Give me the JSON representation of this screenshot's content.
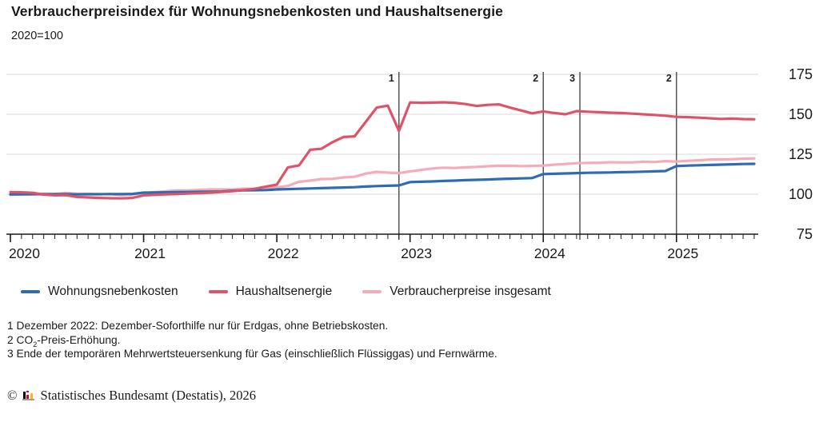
{
  "header": {
    "title": "Verbraucherpreisindex für Wohnungsnebenkosten und Haushaltsenergie",
    "subtitle": "2020=100"
  },
  "chart_data": {
    "type": "line",
    "title": "Verbraucherpreisindex für Wohnungsnebenkosten und Haushaltsenergie",
    "index_base": "2020=100",
    "x_unit": "month",
    "x_start": "2020-01",
    "x_end": "2025-08",
    "x_tick_labels": [
      "2020",
      "2021",
      "2022",
      "2023",
      "2024",
      "2025"
    ],
    "ylim": [
      75,
      175
    ],
    "yticks": [
      75,
      100,
      125,
      150,
      175
    ],
    "grid": true,
    "legend_position": "bottom",
    "series": [
      {
        "name": "Wohnungsnebenkosten",
        "color": "#2d6cb5",
        "values": [
          99.9,
          99.9,
          100.0,
          100.0,
          100.0,
          100.0,
          99.9,
          100.0,
          100.0,
          100.1,
          100.1,
          100.2,
          101.0,
          101.1,
          101.2,
          101.3,
          101.4,
          101.5,
          101.6,
          101.7,
          102.2,
          102.4,
          102.5,
          102.6,
          103.0,
          103.2,
          103.4,
          103.6,
          103.8,
          104.0,
          104.2,
          104.4,
          104.8,
          105.1,
          105.3,
          105.5,
          107.6,
          107.8,
          108.0,
          108.3,
          108.5,
          108.8,
          109.0,
          109.2,
          109.5,
          109.7,
          109.9,
          110.1,
          112.6,
          112.8,
          113.0,
          113.2,
          113.4,
          113.5,
          113.6,
          113.8,
          113.9,
          114.1,
          114.3,
          114.5,
          117.6,
          117.9,
          118.1,
          118.3,
          118.5,
          118.7,
          118.9,
          119.0
        ]
      },
      {
        "name": "Haushaltsenergie",
        "color": "#dd5468",
        "values": [
          101.3,
          101.2,
          100.9,
          99.8,
          99.3,
          99.4,
          98.3,
          98.0,
          97.7,
          97.5,
          97.4,
          97.7,
          99.3,
          99.6,
          99.9,
          100.1,
          100.4,
          100.7,
          101.0,
          101.4,
          101.9,
          102.6,
          103.4,
          104.7,
          106.0,
          116.8,
          118.0,
          127.8,
          128.4,
          132.5,
          135.8,
          136.2,
          145.2,
          154.2,
          155.4,
          139.6,
          157.4,
          157.2,
          157.3,
          157.5,
          157.2,
          156.4,
          155.2,
          155.9,
          156.2,
          154.2,
          152.4,
          150.6,
          151.8,
          150.8,
          150.0,
          152.0,
          151.6,
          151.3,
          151.0,
          150.8,
          150.4,
          150.0,
          149.6,
          149.1,
          148.4,
          148.2,
          147.9,
          147.5,
          147.1,
          147.3,
          147.0,
          146.9
        ]
      },
      {
        "name": "Verbraucherpreise insgesamt",
        "color": "#f6abb8",
        "values": [
          99.6,
          99.9,
          100.0,
          100.3,
          100.2,
          100.8,
          100.3,
          100.2,
          100.0,
          100.1,
          99.4,
          99.9,
          100.7,
          101.3,
          101.8,
          102.4,
          102.3,
          102.7,
          103.0,
          103.0,
          103.0,
          103.5,
          103.3,
          103.8,
          104.3,
          105.2,
          107.8,
          108.5,
          109.5,
          109.6,
          110.5,
          110.9,
          112.9,
          114.0,
          113.5,
          113.2,
          114.3,
          115.2,
          116.1,
          116.6,
          116.4,
          116.8,
          117.1,
          117.5,
          117.8,
          117.8,
          117.6,
          117.7,
          117.9,
          118.5,
          118.9,
          119.4,
          119.6,
          119.7,
          120.0,
          119.9,
          119.9,
          120.3,
          120.1,
          120.7,
          120.4,
          120.9,
          121.2,
          121.7,
          121.8,
          121.9,
          122.2,
          122.4
        ]
      }
    ],
    "annotations": [
      {
        "label": "1",
        "date": "2022-12",
        "month_index": 35
      },
      {
        "label": "2",
        "date": "2024-01",
        "month_index": 48
      },
      {
        "label": "3",
        "date": "2024-04",
        "month_index": 51.3
      },
      {
        "label": "2",
        "date": "2025-01",
        "month_index": 60
      }
    ]
  },
  "legend": {
    "items": [
      {
        "label": "Wohnungsnebenkosten",
        "color": "#2d6cb5"
      },
      {
        "label": "Haushaltsenergie",
        "color": "#dd5468"
      },
      {
        "label": "Verbraucherpreise insgesamt",
        "color": "#f6abb8"
      }
    ]
  },
  "footnotes": {
    "line1": "1 Dezember 2022: Dezember-Soforthilfe nur für Erdgas, ohne Betriebskosten.",
    "line2_prefix": "2 CO",
    "line2_sub": "2",
    "line2_suffix": "-Preis-Erhöhung.",
    "line3": "3 Ende der temporären Mehrwertsteuersenkung für Gas (einschließlich Flüssiggas) und Fernwärme."
  },
  "copyright": {
    "symbol": "©",
    "text": "Statistisches Bundesamt (Destatis), 2026"
  },
  "colors": {
    "accent_blue": "#2d6cb5",
    "accent_red": "#dd5468",
    "accent_pink": "#f6abb8",
    "grid": "#d9d9d9",
    "axis": "#1a1a1a",
    "annotation_line": "#3c3c3c"
  }
}
